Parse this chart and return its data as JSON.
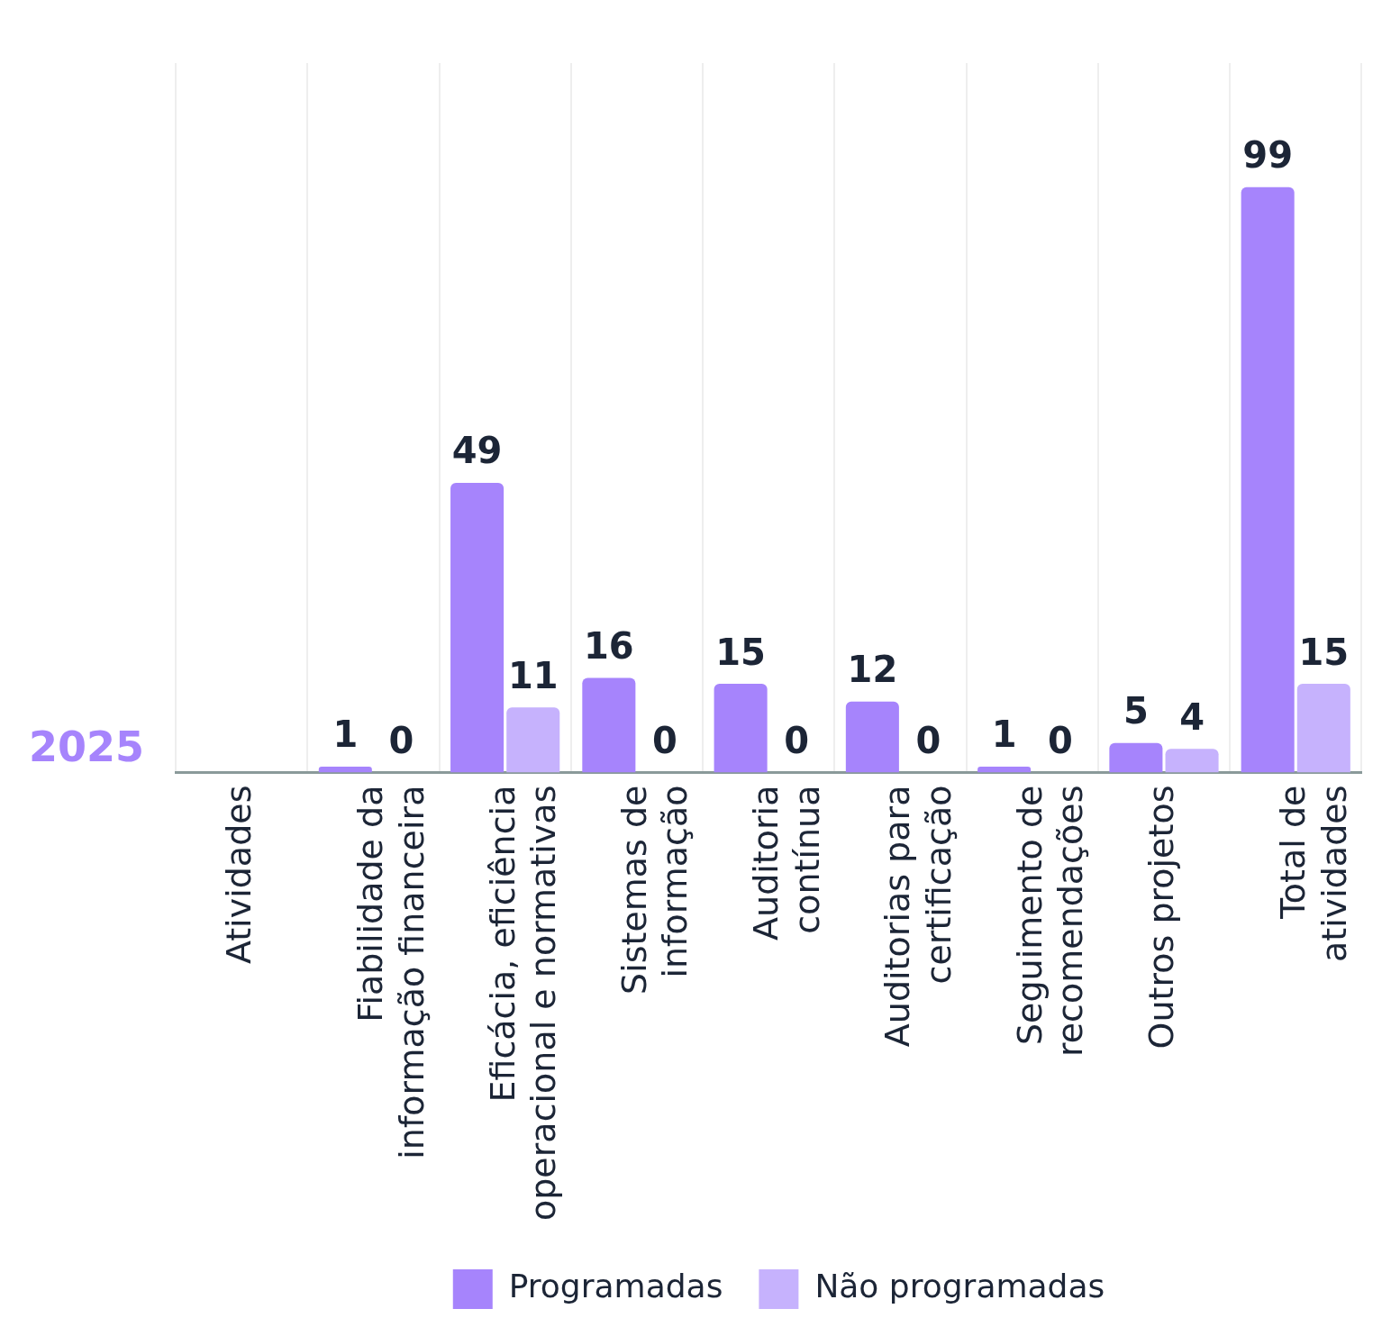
{
  "chart_data": {
    "type": "bar",
    "ylabel": "2025",
    "categories": [
      "Atividades",
      "Fiabilidade da informação financeira",
      "Eficácia, eficiência operacional e normativas",
      "Sistemas de informação",
      "Auditoria contínua",
      "Auditorias para certificação",
      "Seguimento de recomendações",
      "Outros projetos",
      "Total de atividades"
    ],
    "series": [
      {
        "name": "Programadas",
        "color": "#a684fc",
        "values": [
          null,
          1,
          49,
          16,
          15,
          12,
          1,
          5,
          99
        ]
      },
      {
        "name": "Não programadas",
        "color": "#c6b2fd",
        "values": [
          null,
          0,
          11,
          0,
          0,
          0,
          0,
          4,
          15
        ]
      }
    ],
    "data_labels": true,
    "grid": "x",
    "legend": "bottom"
  }
}
